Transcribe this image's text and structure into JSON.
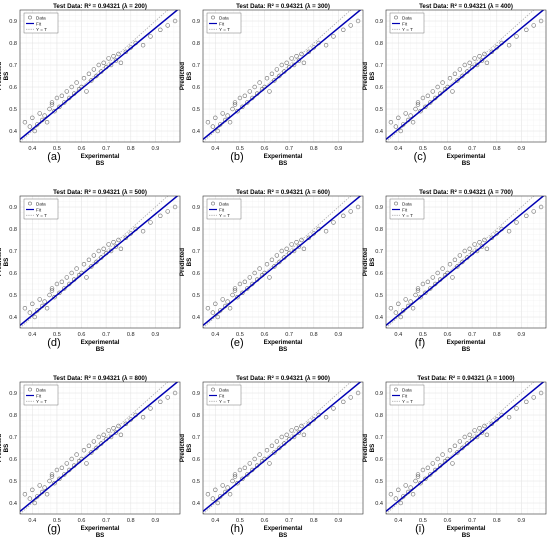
{
  "panels": [
    {
      "label": "(a)",
      "title": "Test Data: R² = 0.94321 (λ = 200)"
    },
    {
      "label": "(b)",
      "title": "Test Data: R² = 0.94321 (λ = 300)"
    },
    {
      "label": "(c)",
      "title": "Test Data: R² = 0.94321 (λ = 400)"
    },
    {
      "label": "(d)",
      "title": "Test Data: R² = 0.94321 (λ = 500)"
    },
    {
      "label": "(e)",
      "title": "Test Data: R² = 0.94321 (λ = 600)"
    },
    {
      "label": "(f)",
      "title": "Test Data: R² = 0.94321 (λ = 700)"
    },
    {
      "label": "(g)",
      "title": "Test Data: R² = 0.94321 (λ = 800)"
    },
    {
      "label": "(h)",
      "title": "Test Data: R² = 0.94321 (λ = 900)"
    },
    {
      "label": "(i)",
      "title": "Test Data: R² = 0.94321 (λ = 1000)"
    }
  ],
  "axes": {
    "xlabel_line1": "Experimental",
    "xlabel_line2": "BS",
    "ylabel_line1": "Predicted",
    "ylabel_line2": "BS"
  },
  "legend": {
    "data": "Data",
    "fit": "Fit",
    "identity": "Y = T"
  },
  "colors": {
    "fit": "#0000b3",
    "identity": "#b0b0b0",
    "points": "#6e6e6e",
    "grid": "#e6e6e6"
  },
  "chart_data": {
    "type": "scatter",
    "xlim": [
      0.35,
      1.0
    ],
    "ylim": [
      0.35,
      0.95
    ],
    "xticks": [
      0.4,
      0.5,
      0.6,
      0.7,
      0.8,
      0.9
    ],
    "yticks": [
      0.4,
      0.5,
      0.6,
      0.7,
      0.8,
      0.9
    ],
    "grid": true,
    "legend_position": "top-left",
    "fit_line": {
      "slope": 0.92,
      "intercept": 0.04
    },
    "identity_line": {
      "slope": 1,
      "intercept": 0
    },
    "points": {
      "x": [
        0.37,
        0.39,
        0.4,
        0.41,
        0.42,
        0.43,
        0.44,
        0.45,
        0.46,
        0.47,
        0.48,
        0.48,
        0.49,
        0.5,
        0.51,
        0.52,
        0.53,
        0.54,
        0.55,
        0.56,
        0.57,
        0.58,
        0.59,
        0.6,
        0.61,
        0.62,
        0.63,
        0.64,
        0.65,
        0.66,
        0.67,
        0.68,
        0.69,
        0.7,
        0.71,
        0.72,
        0.73,
        0.74,
        0.75,
        0.76,
        0.78,
        0.8,
        0.82,
        0.85,
        0.88,
        0.92,
        0.95,
        0.98
      ],
      "y": [
        0.44,
        0.42,
        0.46,
        0.4,
        0.43,
        0.48,
        0.45,
        0.47,
        0.44,
        0.5,
        0.53,
        0.52,
        0.49,
        0.55,
        0.51,
        0.56,
        0.53,
        0.58,
        0.55,
        0.6,
        0.57,
        0.62,
        0.59,
        0.6,
        0.64,
        0.58,
        0.66,
        0.63,
        0.68,
        0.65,
        0.7,
        0.67,
        0.71,
        0.69,
        0.73,
        0.7,
        0.74,
        0.72,
        0.75,
        0.71,
        0.76,
        0.78,
        0.8,
        0.79,
        0.83,
        0.86,
        0.88,
        0.9
      ]
    }
  }
}
